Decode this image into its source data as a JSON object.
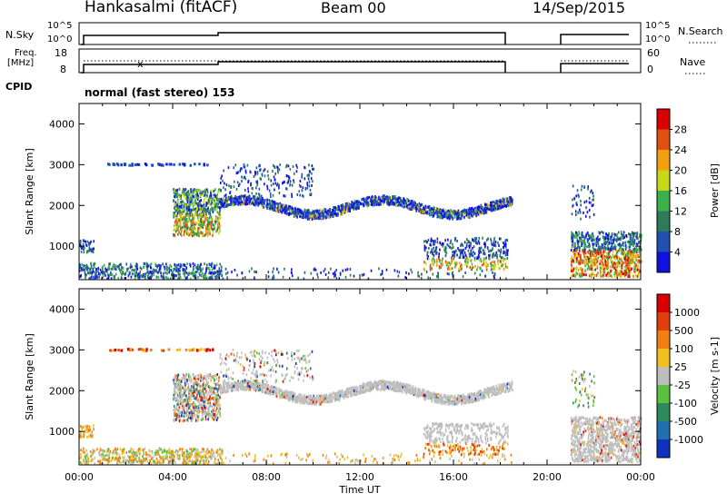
{
  "header": {
    "station": "Hankasalmi (fitACF)",
    "beam": "Beam 00",
    "date": "14/Sep/2015"
  },
  "status": {
    "nsky_label": "N.Sky",
    "nsky_ticks": [
      "10^5",
      "10^0"
    ],
    "nsearch_label": "N.Search",
    "nsearch_ticks": [
      "10^5",
      "10^0"
    ],
    "freq_label_1": "Freq.",
    "freq_label_2": "[MHz]",
    "freq_ticks": [
      "18",
      "8"
    ],
    "nave_label": "Nave",
    "nave_ticks": [
      "60",
      "0"
    ],
    "cpid_label": "CPID",
    "cpid_text": "normal (fast stereo) 153"
  },
  "colors": {
    "scatter_ground": "#bebebe",
    "axis": "#000000"
  },
  "chart_data": [
    {
      "type": "heatmap",
      "name": "power-panel",
      "ylabel": "Slant Range [km]",
      "xlabel": "",
      "xlim": [
        0,
        24
      ],
      "ylim": [
        180,
        4500
      ],
      "yticks": [
        "1000",
        "2000",
        "3000",
        "4000"
      ],
      "colorbar": {
        "label": "Power [dB]",
        "ticks": [
          "4",
          "8",
          "12",
          "16",
          "20",
          "24",
          "28"
        ],
        "colors": [
          "#1010e0",
          "#2050b0",
          "#2e7a5a",
          "#3cb04a",
          "#c8d818",
          "#f0a010",
          "#e05010",
          "#d80000"
        ]
      }
    },
    {
      "type": "heatmap",
      "name": "velocity-panel",
      "ylabel": "Slant Range [km]",
      "xlabel": "Time UT",
      "xlim": [
        0,
        24
      ],
      "ylim": [
        180,
        4500
      ],
      "xticks": [
        "00:00",
        "04:00",
        "08:00",
        "12:00",
        "16:00",
        "20:00",
        "00:00"
      ],
      "yticks": [
        "1000",
        "2000",
        "3000",
        "4000"
      ],
      "colorbar": {
        "label": "Velocity [m s-1]",
        "ticks": [
          "1000",
          "500",
          "100",
          "25",
          "-25",
          "-100",
          "-500",
          "-1000"
        ],
        "colors": [
          "#1030c0",
          "#2070b0",
          "#2e8a5a",
          "#5cc040",
          "#bebebe",
          "#f0c020",
          "#f08010",
          "#e04010",
          "#d80000"
        ]
      }
    }
  ]
}
